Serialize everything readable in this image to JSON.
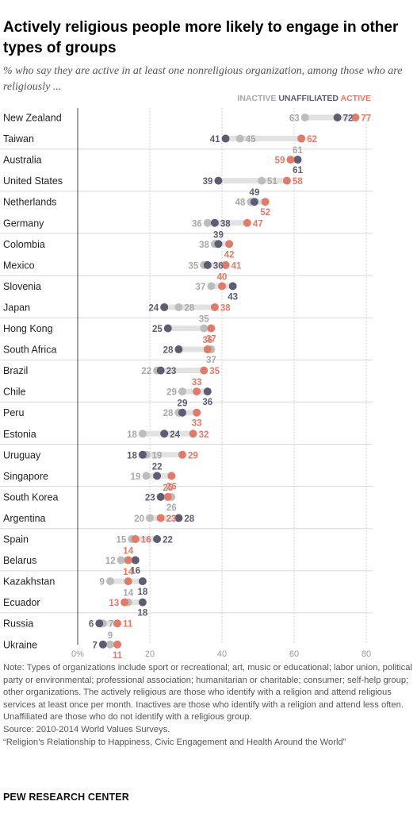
{
  "title": "Actively religious people more likely to engage in other types of groups",
  "subtitle": "% who say they are active in at least one nonreligious organization, among those who are religiously ...",
  "chart_data": {
    "type": "dot",
    "categories": [
      "New Zealand",
      "Taiwan",
      "Australia",
      "United States",
      "Netherlands",
      "Germany",
      "Colombia",
      "Mexico",
      "Slovenia",
      "Japan",
      "Hong Kong",
      "South Africa",
      "Brazil",
      "Chile",
      "Peru",
      "Estonia",
      "Uruguay",
      "Singapore",
      "South Korea",
      "Argentina",
      "Spain",
      "Belarus",
      "Kazakhstan",
      "Ecuador",
      "Russia",
      "Ukraine"
    ],
    "series": [
      {
        "name": "INACTIVE",
        "color": "#bdbdbd",
        "values": [
          63,
          45,
          61,
          51,
          48,
          36,
          38,
          35,
          37,
          28,
          35,
          37,
          22,
          29,
          28,
          18,
          19,
          19,
          26,
          20,
          15,
          12,
          9,
          14,
          7,
          9
        ]
      },
      {
        "name": "UNAFFILIATED",
        "color": "#5c5c73",
        "values": [
          72,
          41,
          61,
          39,
          49,
          38,
          39,
          36,
          43,
          24,
          25,
          28,
          23,
          36,
          29,
          24,
          18,
          22,
          23,
          28,
          22,
          16,
          18,
          18,
          6,
          7
        ]
      },
      {
        "name": "ACTIVE",
        "color": "#e07b6a",
        "values": [
          77,
          62,
          59,
          58,
          52,
          47,
          42,
          41,
          40,
          38,
          37,
          36,
          35,
          33,
          33,
          32,
          29,
          26,
          25,
          23,
          16,
          14,
          14,
          13,
          11,
          11
        ]
      }
    ],
    "x_ticks": [
      "0%",
      "20",
      "40",
      "60",
      "80"
    ],
    "xlim": [
      0,
      80
    ],
    "grid": true,
    "legend": "top-right"
  },
  "notes": [
    "Note: Types of organizations include sport or recreational; art, music or educational; labor union, political party or environmental; professional association; humanitarian or charitable; consumer; self-help group; other organizations. The actively religious are those who identify with a religion and attend religious services at least once per month. Inactives are those who identify with a religion and attend less often. Unaffiliated are those who do not identify with a religious group.",
    "Source: 2010-2014 World Values Surveys.",
    "“Religion’s Relationship to Happiness, Civic Engagement and Health Around the World”"
  ],
  "brand": "PEW RESEARCH CENTER"
}
